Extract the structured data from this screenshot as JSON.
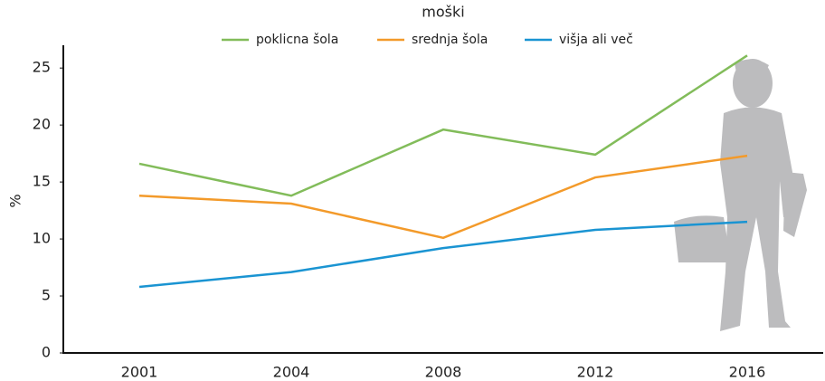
{
  "chart_data": {
    "type": "line",
    "title": "moški",
    "y_label": "%",
    "categories": [
      "2001",
      "2004",
      "2008",
      "2012",
      "2016"
    ],
    "series": [
      {
        "name": "poklicna šola",
        "color": "#82bc5a",
        "values": [
          16.6,
          13.8,
          19.6,
          17.4,
          26.1
        ]
      },
      {
        "name": "srednja šola",
        "color": "#f39a2a",
        "values": [
          13.8,
          13.1,
          10.1,
          15.4,
          17.3
        ]
      },
      {
        "name": "višja ali več",
        "color": "#1a94d2",
        "values": [
          5.8,
          7.1,
          9.2,
          10.8,
          11.5
        ]
      }
    ],
    "ylim": [
      0,
      27
    ],
    "yticks": [
      0,
      5,
      10,
      15,
      20,
      25
    ],
    "grid": false
  }
}
